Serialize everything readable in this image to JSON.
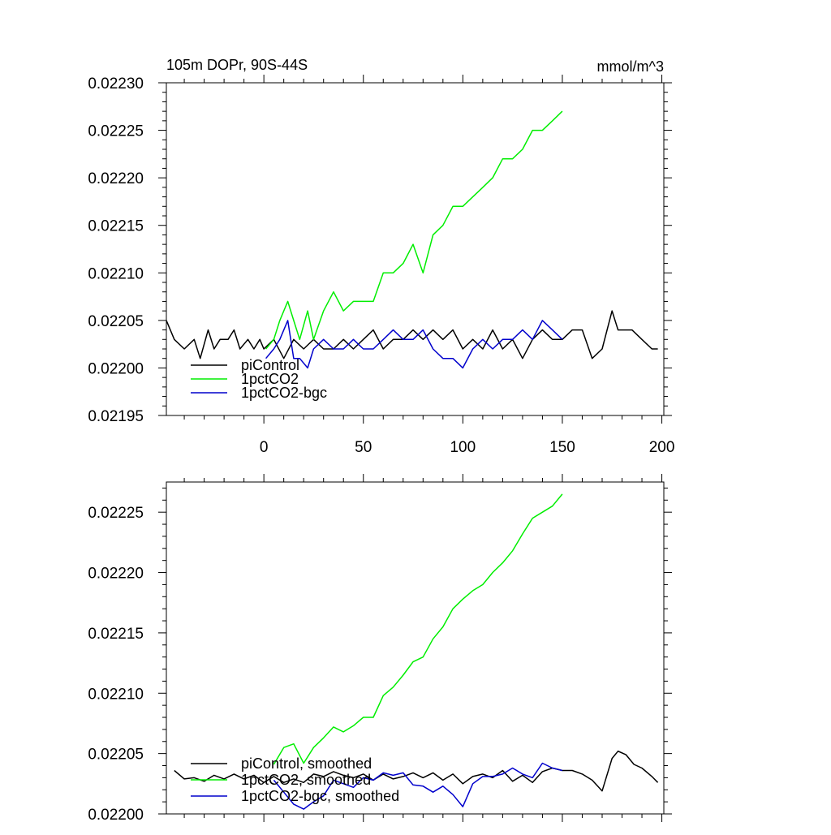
{
  "chart_data": [
    {
      "type": "line",
      "title": "105m DOPr, 90S-44S",
      "units": "mmol/m^3",
      "xlim": [
        -49,
        201
      ],
      "ylim": [
        0.02195,
        0.0223
      ],
      "x_ticks": [
        0,
        50,
        100,
        150,
        200
      ],
      "y_ticks": [
        0.02195,
        0.022,
        0.02205,
        0.0221,
        0.02215,
        0.0222,
        0.02225,
        0.0223
      ],
      "x_tick_labels": [
        "0",
        "50",
        "100",
        "150",
        "200"
      ],
      "y_tick_labels": [
        "0.02195",
        "0.02200",
        "0.02205",
        "0.02210",
        "0.02215",
        "0.02220",
        "0.02225",
        "0.02230"
      ],
      "legend_position": "lower-left",
      "grid": false,
      "series": [
        {
          "name": "piControl",
          "color": "#000000",
          "x": [
            -49,
            -45,
            -40,
            -35,
            -32,
            -28,
            -25,
            -22,
            -18,
            -15,
            -12,
            -8,
            -5,
            -2,
            0,
            5,
            10,
            15,
            20,
            25,
            30,
            35,
            40,
            45,
            50,
            55,
            60,
            65,
            70,
            75,
            80,
            85,
            90,
            95,
            100,
            105,
            110,
            115,
            120,
            125,
            130,
            135,
            140,
            145,
            150,
            155,
            160,
            165,
            170,
            175,
            178,
            182,
            185,
            190,
            195,
            198
          ],
          "y": [
            0.02205,
            0.02203,
            0.02202,
            0.02203,
            0.02201,
            0.02204,
            0.02202,
            0.02203,
            0.02203,
            0.02204,
            0.02202,
            0.02203,
            0.02202,
            0.02203,
            0.02202,
            0.02203,
            0.02201,
            0.02203,
            0.02202,
            0.02203,
            0.02202,
            0.02202,
            0.02203,
            0.02202,
            0.02203,
            0.02204,
            0.02202,
            0.02203,
            0.02203,
            0.02204,
            0.02203,
            0.02204,
            0.02203,
            0.02204,
            0.02202,
            0.02203,
            0.02202,
            0.02204,
            0.02202,
            0.02203,
            0.02201,
            0.02203,
            0.02204,
            0.02203,
            0.02203,
            0.02204,
            0.02204,
            0.02201,
            0.02202,
            0.02206,
            0.02204,
            0.02204,
            0.02204,
            0.02203,
            0.02202,
            0.02202
          ]
        },
        {
          "name": "1pctCO2",
          "color": "#00ee00",
          "x": [
            1,
            5,
            8,
            12,
            15,
            18,
            22,
            25,
            30,
            35,
            40,
            45,
            50,
            55,
            60,
            65,
            70,
            75,
            80,
            85,
            90,
            95,
            100,
            105,
            110,
            115,
            120,
            125,
            130,
            135,
            140,
            145,
            150
          ],
          "y": [
            0.02202,
            0.02203,
            0.02205,
            0.02207,
            0.02205,
            0.02203,
            0.02206,
            0.02203,
            0.02206,
            0.02208,
            0.02206,
            0.02207,
            0.02207,
            0.02207,
            0.0221,
            0.0221,
            0.02211,
            0.02213,
            0.0221,
            0.02214,
            0.02215,
            0.02217,
            0.02217,
            0.02218,
            0.02219,
            0.0222,
            0.02222,
            0.02222,
            0.02223,
            0.02225,
            0.02225,
            0.02226,
            0.02227
          ]
        },
        {
          "name": "1pctCO2-bgc",
          "color": "#0000cc",
          "x": [
            1,
            5,
            8,
            12,
            15,
            18,
            22,
            25,
            30,
            35,
            40,
            45,
            50,
            55,
            60,
            65,
            70,
            75,
            80,
            85,
            90,
            95,
            100,
            105,
            110,
            115,
            120,
            125,
            130,
            135,
            140,
            145,
            150
          ],
          "y": [
            0.02201,
            0.02202,
            0.02203,
            0.02205,
            0.02201,
            0.02201,
            0.022,
            0.02202,
            0.02203,
            0.02202,
            0.02202,
            0.02203,
            0.02202,
            0.02202,
            0.02203,
            0.02204,
            0.02203,
            0.02203,
            0.02204,
            0.02202,
            0.02201,
            0.02201,
            0.022,
            0.02202,
            0.02203,
            0.02202,
            0.02203,
            0.02203,
            0.02204,
            0.02203,
            0.02205,
            0.02204,
            0.02203
          ]
        }
      ]
    },
    {
      "type": "line",
      "title": "",
      "units": "",
      "xlim": [
        -49,
        201
      ],
      "ylim": [
        0.022,
        0.022275
      ],
      "x_ticks": [
        0,
        50,
        100,
        150,
        200
      ],
      "y_ticks": [
        0.022,
        0.02205,
        0.0221,
        0.02215,
        0.0222,
        0.02225
      ],
      "x_tick_labels": [],
      "y_tick_labels": [
        "0.02200",
        "0.02205",
        "0.02210",
        "0.02215",
        "0.02220",
        "0.02225"
      ],
      "legend_position": "lower-left",
      "grid": false,
      "series": [
        {
          "name": "piControl, smoothed",
          "color": "#000000",
          "x": [
            -45,
            -40,
            -35,
            -30,
            -25,
            -20,
            -15,
            -10,
            -5,
            0,
            5,
            10,
            15,
            20,
            25,
            30,
            35,
            40,
            45,
            50,
            55,
            60,
            65,
            70,
            75,
            80,
            85,
            90,
            95,
            100,
            105,
            110,
            115,
            120,
            125,
            130,
            135,
            140,
            145,
            150,
            155,
            160,
            165,
            170,
            175,
            178,
            182,
            186,
            190,
            195,
            198
          ],
          "y": [
            0.022036,
            0.022029,
            0.02203,
            0.022027,
            0.022032,
            0.022029,
            0.022033,
            0.022029,
            0.022032,
            0.022026,
            0.022031,
            0.022026,
            0.022029,
            0.022026,
            0.022033,
            0.022031,
            0.022035,
            0.022032,
            0.02203,
            0.022033,
            0.022028,
            0.022033,
            0.022029,
            0.022031,
            0.022034,
            0.02203,
            0.022034,
            0.022028,
            0.022033,
            0.022025,
            0.022031,
            0.022033,
            0.02203,
            0.022036,
            0.022027,
            0.022032,
            0.022026,
            0.022035,
            0.022038,
            0.022036,
            0.022036,
            0.022033,
            0.022028,
            0.022019,
            0.022046,
            0.022052,
            0.022049,
            0.022041,
            0.022038,
            0.022031,
            0.022026
          ]
        },
        {
          "name": "1pctCO2, smoothed",
          "color": "#00ee00",
          "x": [
            5,
            10,
            15,
            20,
            25,
            30,
            35,
            40,
            45,
            50,
            55,
            60,
            65,
            70,
            75,
            80,
            85,
            90,
            95,
            100,
            105,
            110,
            115,
            120,
            125,
            130,
            135,
            140,
            145,
            150
          ],
          "y": [
            0.022041,
            0.022055,
            0.022058,
            0.022042,
            0.022055,
            0.022063,
            0.022072,
            0.022068,
            0.022073,
            0.02208,
            0.02208,
            0.022098,
            0.022105,
            0.022115,
            0.022126,
            0.02213,
            0.022145,
            0.022155,
            0.02217,
            0.022178,
            0.022185,
            0.02219,
            0.0222,
            0.022208,
            0.022218,
            0.022232,
            0.022245,
            0.02225,
            0.022255,
            0.022265
          ]
        },
        {
          "name": "1pctCO2-bgc, smoothed",
          "color": "#0000cc",
          "x": [
            5,
            10,
            15,
            20,
            25,
            30,
            35,
            40,
            45,
            50,
            55,
            60,
            65,
            70,
            75,
            80,
            85,
            90,
            95,
            100,
            105,
            110,
            115,
            120,
            125,
            130,
            135,
            140,
            145,
            150
          ],
          "y": [
            0.022028,
            0.022018,
            0.022008,
            0.022004,
            0.02201,
            0.022015,
            0.022028,
            0.022025,
            0.022022,
            0.02203,
            0.022028,
            0.022034,
            0.022032,
            0.022034,
            0.022024,
            0.022023,
            0.022018,
            0.022023,
            0.022016,
            0.022006,
            0.022025,
            0.022031,
            0.022031,
            0.022033,
            0.022038,
            0.022033,
            0.02203,
            0.022042,
            0.022038,
            0.022036
          ]
        }
      ]
    }
  ]
}
